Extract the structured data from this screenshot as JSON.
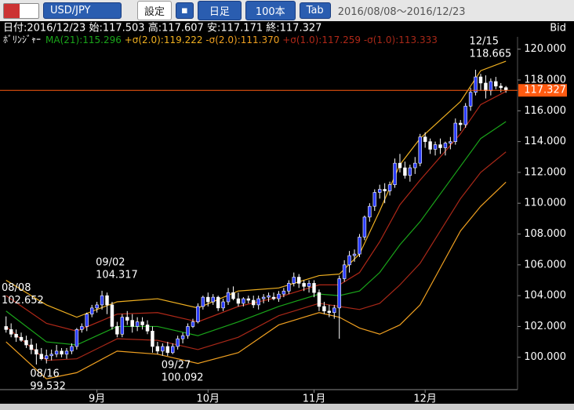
{
  "header": {
    "pair": "USD/JPY",
    "buttons": [
      "設定",
      "日足",
      "100本",
      "Tab"
    ],
    "range": "2016/08/08～2016/12/23"
  },
  "chart_data": {
    "type": "candlestick",
    "info": "日付:2016/12/23 始:117.503 高:117.607 安:117.171 終:117.327",
    "price_side": "Bid",
    "indicator": "ﾎﾞﾘﾝｼﾞｬｰ",
    "up_color": "#2a3cff",
    "down_color": "#ffffff",
    "candles": [
      [
        102.0,
        102.652,
        101.6,
        101.8
      ],
      [
        101.8,
        102.2,
        101.3,
        101.5
      ],
      [
        101.5,
        101.8,
        101.0,
        101.3
      ],
      [
        101.3,
        101.6,
        101.0,
        101.1
      ],
      [
        101.1,
        101.4,
        100.6,
        100.8
      ],
      [
        100.8,
        101.2,
        100.2,
        100.5
      ],
      [
        100.5,
        100.9,
        99.532,
        100.2
      ],
      [
        100.2,
        100.6,
        99.8,
        99.9
      ],
      [
        99.9,
        100.5,
        99.6,
        100.1
      ],
      [
        100.1,
        100.5,
        99.8,
        100.2
      ],
      [
        100.2,
        100.8,
        100.0,
        100.4
      ],
      [
        100.4,
        100.6,
        100.0,
        100.2
      ],
      [
        100.2,
        100.6,
        99.9,
        100.4
      ],
      [
        100.4,
        100.9,
        100.2,
        100.7
      ],
      [
        100.7,
        101.9,
        100.5,
        101.8
      ],
      [
        101.8,
        102.2,
        101.6,
        102.0
      ],
      [
        102.0,
        102.9,
        101.7,
        102.8
      ],
      [
        102.8,
        103.4,
        102.6,
        103.2
      ],
      [
        103.2,
        103.6,
        102.9,
        103.4
      ],
      [
        103.4,
        104.317,
        103.1,
        104.0
      ],
      [
        104.0,
        104.2,
        102.8,
        103.4
      ],
      [
        103.4,
        103.6,
        101.8,
        102.0
      ],
      [
        102.0,
        102.3,
        101.3,
        101.5
      ],
      [
        101.5,
        102.8,
        101.3,
        102.6
      ],
      [
        102.6,
        103.0,
        102.1,
        102.4
      ],
      [
        102.4,
        102.8,
        101.6,
        102.0
      ],
      [
        102.0,
        102.6,
        101.7,
        102.3
      ],
      [
        102.3,
        102.6,
        101.8,
        102.1
      ],
      [
        102.1,
        102.4,
        101.5,
        101.7
      ],
      [
        101.7,
        102.0,
        100.3,
        100.7
      ],
      [
        100.7,
        101.0,
        100.2,
        100.4
      ],
      [
        100.4,
        100.9,
        100.1,
        100.7
      ],
      [
        100.7,
        101.0,
        100.092,
        100.3
      ],
      [
        100.3,
        100.9,
        100.2,
        100.7
      ],
      [
        100.7,
        101.4,
        100.5,
        101.2
      ],
      [
        101.2,
        101.6,
        100.9,
        101.4
      ],
      [
        101.4,
        102.2,
        101.2,
        102.0
      ],
      [
        102.0,
        102.5,
        101.9,
        102.3
      ],
      [
        102.3,
        103.5,
        102.2,
        103.3
      ],
      [
        103.3,
        104.0,
        103.1,
        103.9
      ],
      [
        103.9,
        104.2,
        103.3,
        103.6
      ],
      [
        103.6,
        104.1,
        103.4,
        103.9
      ],
      [
        103.9,
        104.0,
        103.0,
        103.2
      ],
      [
        103.2,
        103.8,
        103.0,
        103.6
      ],
      [
        103.6,
        104.5,
        103.4,
        104.2
      ],
      [
        104.2,
        104.6,
        103.7,
        103.8
      ],
      [
        103.8,
        104.2,
        103.3,
        103.5
      ],
      [
        103.5,
        103.9,
        103.3,
        103.8
      ],
      [
        103.8,
        104.0,
        103.5,
        103.7
      ],
      [
        103.7,
        104.0,
        103.2,
        103.4
      ],
      [
        103.4,
        104.0,
        103.1,
        103.8
      ],
      [
        103.8,
        104.1,
        103.5,
        103.9
      ],
      [
        103.9,
        104.2,
        103.6,
        104.0
      ],
      [
        103.9,
        104.2,
        103.7,
        103.8
      ],
      [
        103.8,
        104.3,
        103.6,
        104.1
      ],
      [
        104.1,
        104.5,
        103.9,
        104.3
      ],
      [
        104.3,
        105.0,
        104.1,
        104.8
      ],
      [
        104.8,
        105.5,
        104.6,
        105.2
      ],
      [
        105.2,
        105.4,
        104.5,
        104.8
      ],
      [
        104.8,
        105.0,
        104.3,
        104.6
      ],
      [
        104.6,
        105.0,
        104.2,
        104.8
      ],
      [
        104.8,
        105.0,
        103.9,
        104.2
      ],
      [
        104.2,
        104.4,
        103.0,
        103.3
      ],
      [
        103.3,
        103.6,
        102.8,
        103.0
      ],
      [
        103.0,
        103.4,
        102.6,
        102.9
      ],
      [
        102.9,
        103.4,
        102.5,
        103.2
      ],
      [
        103.2,
        105.3,
        101.2,
        105.1
      ],
      [
        105.1,
        106.3,
        104.9,
        106.0
      ],
      [
        106.0,
        106.9,
        105.5,
        106.6
      ],
      [
        106.6,
        107.0,
        106.2,
        106.7
      ],
      [
        106.7,
        108.0,
        106.5,
        107.8
      ],
      [
        107.8,
        109.2,
        107.6,
        109.1
      ],
      [
        109.1,
        110.0,
        108.8,
        109.8
      ],
      [
        109.8,
        110.9,
        109.5,
        110.7
      ],
      [
        110.7,
        111.2,
        110.3,
        110.9
      ],
      [
        110.9,
        111.3,
        110.0,
        110.8
      ],
      [
        110.8,
        111.4,
        110.5,
        111.2
      ],
      [
        111.2,
        112.9,
        111.0,
        112.6
      ],
      [
        112.6,
        113.2,
        112.0,
        112.3
      ],
      [
        112.3,
        112.7,
        111.6,
        111.8
      ],
      [
        111.8,
        112.5,
        111.4,
        112.3
      ],
      [
        112.3,
        113.0,
        111.9,
        112.6
      ],
      [
        112.6,
        114.5,
        112.4,
        114.3
      ],
      [
        114.3,
        114.6,
        113.6,
        114.0
      ],
      [
        114.0,
        114.2,
        113.2,
        113.5
      ],
      [
        113.5,
        114.0,
        113.1,
        113.8
      ],
      [
        113.8,
        114.2,
        113.2,
        113.6
      ],
      [
        113.6,
        114.0,
        113.1,
        113.9
      ],
      [
        113.9,
        114.3,
        113.5,
        114.0
      ],
      [
        114.0,
        115.5,
        113.8,
        115.2
      ],
      [
        115.2,
        115.4,
        114.7,
        115.1
      ],
      [
        115.1,
        116.5,
        114.9,
        116.3
      ],
      [
        116.3,
        117.5,
        116.0,
        117.2
      ],
      [
        117.2,
        118.665,
        117.0,
        118.2
      ],
      [
        118.2,
        118.4,
        117.3,
        117.8
      ],
      [
        117.8,
        118.3,
        116.8,
        117.3
      ],
      [
        117.3,
        118.1,
        117.0,
        117.9
      ],
      [
        117.9,
        118.2,
        117.4,
        117.6
      ],
      [
        117.6,
        117.8,
        117.2,
        117.5
      ],
      [
        117.503,
        117.607,
        117.171,
        117.327
      ]
    ],
    "x": [
      0,
      8,
      14,
      22,
      30,
      38,
      46,
      54,
      62,
      66,
      70,
      74,
      78,
      82,
      86,
      90,
      94,
      99
    ],
    "series": [
      {
        "name": "MA(21):115.296",
        "color": "#1aa51a",
        "values": [
          103.0,
          101.0,
          100.8,
          102.0,
          102.0,
          101.4,
          102.3,
          103.3,
          104.1,
          104.0,
          104.3,
          105.5,
          107.3,
          108.8,
          110.6,
          112.4,
          114.2,
          115.296
        ]
      },
      {
        "name": "+σ(2.0):119.222",
        "color": "#f0b020",
        "values": [
          105.0,
          103.4,
          102.6,
          103.6,
          103.8,
          103.2,
          104.3,
          104.5,
          105.3,
          105.4,
          106.7,
          109.5,
          112.5,
          114.2,
          115.4,
          116.6,
          118.6,
          119.222
        ]
      },
      {
        "name": "-σ(2.0):111.370",
        "color": "#f0a020",
        "values": [
          101.0,
          98.6,
          99.0,
          100.4,
          100.2,
          99.6,
          100.3,
          102.1,
          102.9,
          102.6,
          101.9,
          101.5,
          102.1,
          103.4,
          105.8,
          108.2,
          109.8,
          111.37
        ]
      },
      {
        "name": "+σ(1.0):117.259",
        "color": "#b02818",
        "values": [
          104.0,
          102.2,
          101.7,
          102.8,
          102.9,
          102.3,
          103.3,
          103.9,
          104.7,
          104.7,
          105.5,
          107.5,
          109.9,
          111.5,
          113.0,
          114.5,
          116.4,
          117.259
        ]
      },
      {
        "name": "-σ(1.0):113.333",
        "color": "#a82818",
        "values": [
          102.0,
          99.8,
          99.9,
          101.2,
          101.1,
          100.5,
          101.3,
          102.7,
          103.5,
          103.3,
          103.1,
          103.5,
          104.7,
          106.1,
          108.2,
          110.3,
          112.0,
          113.333
        ]
      }
    ],
    "annotations": [
      {
        "label": "08/08",
        "value": 102.652
      },
      {
        "label": "08/16",
        "value": 99.532
      },
      {
        "label": "09/02",
        "value": 104.317
      },
      {
        "label": "09/27",
        "value": 100.092
      },
      {
        "label": "12/15",
        "value": 118.665
      }
    ],
    "ylim": [
      97.9,
      120.8
    ],
    "yticks": [
      {
        "value": 100,
        "label": "100.000"
      },
      {
        "value": 102,
        "label": "102.000"
      },
      {
        "value": 104,
        "label": "104.000"
      },
      {
        "value": 106,
        "label": "106.000"
      },
      {
        "value": 108,
        "label": "108.000"
      },
      {
        "value": 110,
        "label": "110.000"
      },
      {
        "value": 112,
        "label": "112.000"
      },
      {
        "value": 114,
        "label": "114.000"
      },
      {
        "value": 116,
        "label": "116.000"
      },
      {
        "value": 118,
        "label": "118.000"
      },
      {
        "value": 120,
        "label": "120.000"
      }
    ],
    "xlim": [
      -1.2,
      101.3
    ],
    "xticks": [
      {
        "value": 18,
        "label": "9月"
      },
      {
        "value": 40,
        "label": "10月"
      },
      {
        "value": 61,
        "label": "11月"
      },
      {
        "value": 83,
        "label": "12月"
      }
    ],
    "last_line_color": "#ff5a10"
  }
}
